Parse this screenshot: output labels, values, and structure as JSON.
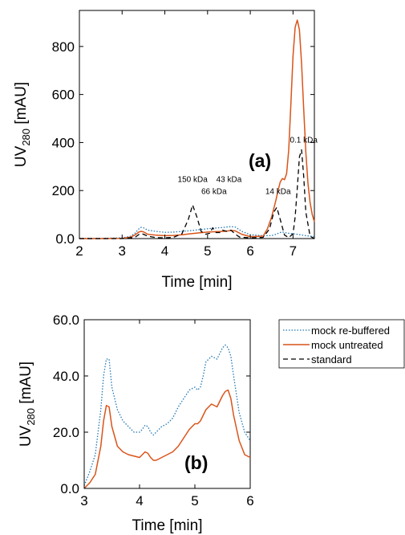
{
  "colors": {
    "rebuffered": "#1f77b4",
    "untreated": "#d9541a",
    "standard": "#000000"
  },
  "chart_data": [
    {
      "type": "line",
      "panel_label": "(a)",
      "xlabel": "Time [min]",
      "ylabel": {
        "prefix": "UV",
        "sub": "280",
        "suffix": " [mAU]"
      },
      "xlim": [
        2,
        7.5
      ],
      "ylim": [
        0,
        950
      ],
      "xticks": [
        2,
        3,
        4,
        5,
        6,
        7
      ],
      "xtick_labels": [
        "2",
        "3",
        "4",
        "5",
        "6",
        "7"
      ],
      "yticks": [
        0,
        200,
        400,
        600,
        800
      ],
      "ytick_labels": [
        "0.0",
        "200",
        "400",
        "600",
        "800"
      ],
      "grid": false,
      "annotations": [
        {
          "text": "150 kDa",
          "x": 4.65,
          "y": 235
        },
        {
          "text": "43 kDa",
          "x": 5.5,
          "y": 235
        },
        {
          "text": "66 kDa",
          "x": 5.15,
          "y": 185
        },
        {
          "text": "14 kDa",
          "x": 6.65,
          "y": 185
        },
        {
          "text": "0.1 kDa",
          "x": 7.25,
          "y": 400
        }
      ],
      "series": [
        {
          "name": "mock re-buffered",
          "style": "dotted",
          "x": [
            2.0,
            2.5,
            3.0,
            3.2,
            3.3,
            3.4,
            3.45,
            3.5,
            3.6,
            3.8,
            4.0,
            4.2,
            4.4,
            4.6,
            4.8,
            5.0,
            5.2,
            5.4,
            5.55,
            5.65,
            5.8,
            6.0,
            6.3,
            6.5,
            6.6,
            6.7,
            6.75,
            6.8,
            6.9,
            7.0,
            7.1,
            7.2,
            7.3,
            7.4,
            7.5
          ],
          "y": [
            1,
            1,
            3,
            10,
            22,
            42,
            47,
            45,
            35,
            30,
            26,
            27,
            30,
            33,
            37,
            41,
            44,
            47,
            50,
            48,
            30,
            16,
            12,
            12,
            18,
            25,
            28,
            25,
            22,
            20,
            18,
            15,
            12,
            10,
            8
          ]
        },
        {
          "name": "mock untreated",
          "style": "solid",
          "x": [
            2.0,
            2.5,
            3.0,
            3.2,
            3.3,
            3.4,
            3.45,
            3.5,
            3.6,
            3.8,
            4.0,
            4.2,
            4.4,
            4.6,
            4.8,
            5.0,
            5.2,
            5.4,
            5.55,
            5.65,
            5.8,
            6.0,
            6.3,
            6.4,
            6.5,
            6.6,
            6.65,
            6.7,
            6.75,
            6.8,
            6.85,
            6.9,
            6.95,
            7.0,
            7.05,
            7.1,
            7.15,
            7.2,
            7.25,
            7.3,
            7.35,
            7.4,
            7.45,
            7.5
          ],
          "y": [
            0,
            0,
            1,
            6,
            15,
            28,
            30,
            28,
            18,
            14,
            12,
            13,
            16,
            20,
            24,
            27,
            29,
            30,
            34,
            32,
            18,
            8,
            10,
            40,
            90,
            160,
            200,
            235,
            250,
            245,
            270,
            370,
            560,
            760,
            880,
            910,
            870,
            730,
            540,
            360,
            230,
            150,
            100,
            70
          ]
        },
        {
          "name": "standard",
          "style": "dashed",
          "x": [
            2.0,
            3.0,
            3.3,
            3.4,
            3.45,
            3.5,
            3.6,
            3.8,
            4.0,
            4.2,
            4.4,
            4.55,
            4.65,
            4.75,
            4.85,
            4.95,
            5.05,
            5.12,
            5.2,
            5.3,
            5.35,
            5.45,
            5.55,
            5.65,
            5.75,
            6.0,
            6.3,
            6.45,
            6.55,
            6.62,
            6.7,
            6.8,
            6.9,
            7.0,
            7.05,
            7.1,
            7.15,
            7.2,
            7.25,
            7.3,
            7.4,
            7.5
          ],
          "y": [
            0,
            0,
            5,
            18,
            20,
            18,
            10,
            4,
            3,
            5,
            20,
            80,
            140,
            90,
            30,
            18,
            22,
            45,
            25,
            25,
            35,
            30,
            35,
            18,
            6,
            3,
            5,
            40,
            110,
            130,
            80,
            15,
            4,
            20,
            90,
            210,
            340,
            370,
            260,
            110,
            10,
            0
          ]
        }
      ]
    },
    {
      "type": "line",
      "panel_label": "(b)",
      "xlabel": "Time [min]",
      "ylabel": {
        "prefix": "UV",
        "sub": "280",
        "suffix": " [mAU]"
      },
      "xlim": [
        3,
        6
      ],
      "ylim": [
        0,
        60
      ],
      "xticks": [
        3,
        4,
        5,
        6
      ],
      "xtick_labels": [
        "3",
        "4",
        "5",
        "6"
      ],
      "yticks": [
        0,
        20,
        40,
        60
      ],
      "ytick_labels": [
        "0.0",
        "20.0",
        "40.0",
        "60.0"
      ],
      "grid": false,
      "legend": {
        "placement": "outside-right",
        "entries": [
          {
            "label": "mock re-buffered",
            "style": "dotted"
          },
          {
            "label": "mock untreated",
            "style": "solid"
          },
          {
            "label": "standard",
            "style": "dashed"
          }
        ]
      },
      "series": [
        {
          "name": "mock re-buffered",
          "style": "dotted",
          "x": [
            3.0,
            3.1,
            3.2,
            3.3,
            3.35,
            3.4,
            3.45,
            3.5,
            3.6,
            3.7,
            3.8,
            3.9,
            4.0,
            4.05,
            4.1,
            4.15,
            4.2,
            4.25,
            4.3,
            4.4,
            4.5,
            4.6,
            4.7,
            4.8,
            4.9,
            5.0,
            5.05,
            5.1,
            5.15,
            5.2,
            5.3,
            5.4,
            5.5,
            5.55,
            5.6,
            5.65,
            5.7,
            5.8,
            5.9,
            6.0
          ],
          "y": [
            1,
            6,
            12,
            28,
            40,
            46,
            46,
            36,
            28,
            24,
            22,
            20,
            20,
            21,
            22.5,
            22,
            20,
            19,
            20,
            22,
            23,
            25,
            29,
            32,
            35,
            36,
            35,
            36,
            40,
            45,
            47,
            46,
            50,
            51,
            50,
            47,
            40,
            27,
            20,
            17
          ]
        },
        {
          "name": "mock untreated",
          "style": "solid",
          "x": [
            3.0,
            3.1,
            3.2,
            3.3,
            3.35,
            3.4,
            3.45,
            3.5,
            3.6,
            3.7,
            3.8,
            3.9,
            4.0,
            4.05,
            4.1,
            4.15,
            4.2,
            4.25,
            4.3,
            4.4,
            4.5,
            4.6,
            4.7,
            4.8,
            4.9,
            5.0,
            5.05,
            5.1,
            5.15,
            5.2,
            5.3,
            5.4,
            5.5,
            5.55,
            5.6,
            5.65,
            5.7,
            5.8,
            5.9,
            6.0
          ],
          "y": [
            0,
            2,
            5,
            15,
            24,
            29.5,
            29,
            22,
            15,
            13,
            12,
            11.5,
            11,
            12,
            13,
            12.5,
            11,
            10,
            10,
            11,
            12,
            13,
            15,
            18,
            21,
            23,
            23,
            24,
            26,
            28,
            30,
            29,
            33,
            34.5,
            35,
            32,
            26,
            17,
            12,
            11
          ]
        }
      ]
    }
  ]
}
